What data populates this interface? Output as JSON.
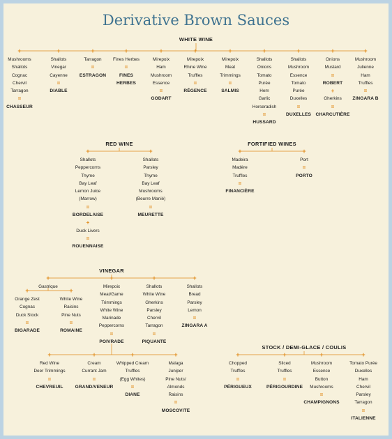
{
  "title": "Derivative Brown Sauces",
  "colors": {
    "accent": "#e08a1a",
    "title": "#3f7390",
    "background": "#f7f1dc",
    "frame": "#bcd3e3"
  },
  "groups": [
    {
      "label": "WHITE WINE",
      "cols": [
        [
          "Mushrooms",
          "Shallots",
          "Cognac",
          "Chervil",
          "Tarragon",
          "=",
          "CHASSEUR"
        ],
        [
          "Shallots",
          "Vinegar",
          "Cayenne",
          "=",
          "DIABLE"
        ],
        [
          "Tarragon",
          "=",
          "ESTRAGON"
        ],
        [
          "Fines Herbes",
          "=",
          "FINES",
          "HERBES"
        ],
        [
          "Mirepoix",
          "Ham",
          "Mushroom",
          "Essence",
          "=",
          "GODART"
        ],
        [
          "Mirepoix",
          "Rhine Wine",
          "Truffles",
          "=",
          "RÉGENCE"
        ],
        [
          "Mirepoix",
          "Meat",
          "Trimmings",
          "=",
          "SALMIS"
        ],
        [
          "Shallots",
          "Onions",
          "Tomato",
          "Purée",
          "Hem",
          "Garlic",
          "Horseradish",
          "=",
          "HUSSARD"
        ],
        [
          "Shallots",
          "Mushroom",
          "Essence",
          "Tomato",
          "Purée",
          "Duxelles",
          "=",
          "DUXELLES"
        ],
        [
          "Onions",
          "Mustard",
          "=",
          "ROBERT",
          "+",
          "Gherkins",
          "=",
          "CHARCUTIÈRE"
        ],
        [
          "Mushroom",
          "Julienne",
          "Ham",
          "Truffles",
          "=",
          "ZINGARA B"
        ]
      ]
    },
    {
      "label": "RED WINE",
      "cols": [
        [
          "Shallots",
          "Peppercorns",
          "Thyme",
          "Bay Leaf",
          "Lemon Juice",
          "(Marrow)",
          "=",
          "BORDELAISE",
          "+",
          "Duck Livers",
          "=",
          "ROUENNAISE"
        ],
        [
          "Shallots",
          "Parsley",
          "Thyme",
          "Bay Leaf",
          "Mushrooms",
          "(Beurre Manié)",
          "=",
          "MEURETTE"
        ]
      ]
    },
    {
      "label": "FORTIFIED WINES",
      "cols": [
        [
          "Madeira",
          "Madère",
          "Truffles",
          "=",
          "FINANCIÈRE"
        ],
        [
          "Port",
          "=",
          "PORTO"
        ]
      ]
    },
    {
      "label": "VINEGAR",
      "cols": [
        [
          "Gastrique"
        ],
        [
          "Mirepoix",
          "Meat/Game",
          "Trimmings",
          "White Wine",
          "Marinade",
          "Peppercorns",
          "=",
          "POIVRADE"
        ],
        [
          "Shallots",
          "White Wine",
          "Gherkins",
          "Parsley",
          "Chervil",
          "Tarragon",
          "=",
          "PIQUANTE"
        ],
        [
          "Shallots",
          "Bread",
          "Parsley",
          "Lemon",
          "=",
          "ZINGARA A"
        ]
      ]
    },
    {
      "label": "",
      "cols": [
        [
          "Orange Zest",
          "Cognac",
          "Duck Stock",
          "=",
          "BIGARADE"
        ],
        [
          "White Wine",
          "Raisins",
          "Pine Nuts",
          "=",
          "ROMAINE"
        ]
      ]
    },
    {
      "label": "",
      "cols": [
        [
          "Red Wine",
          "Deer Trimmings",
          "=",
          "CHEVREUIL"
        ],
        [
          "Cream",
          "Currant Jam",
          "=",
          "GRAND/VENEUR"
        ],
        [
          "Whipped Cream",
          "Truffles",
          "(Egg Whites)",
          "=",
          "DIANE"
        ],
        [
          "Malaga",
          "Juniper",
          "Pine Nuts/",
          "Almonds",
          "Raisins",
          "=",
          "MOSCOVITE"
        ]
      ]
    },
    {
      "label": "STOCK / DEMI-GLACE / COULIS",
      "cols": [
        [
          "Chopped",
          "Truffles",
          "=",
          "PÉRIGUEUX"
        ],
        [
          "Sliced",
          "Truffles",
          "=",
          "PÉRIGOURDINE"
        ],
        [
          "Mushroom",
          "Essence",
          "Button",
          "Mushrooms",
          "=",
          "CHAMPIGNONS"
        ],
        [
          "Tomato Purée",
          "Duxelles",
          "Ham",
          "Chervil",
          "Parsley",
          "Tarragon",
          "=",
          "ITALIENNE"
        ]
      ]
    }
  ]
}
